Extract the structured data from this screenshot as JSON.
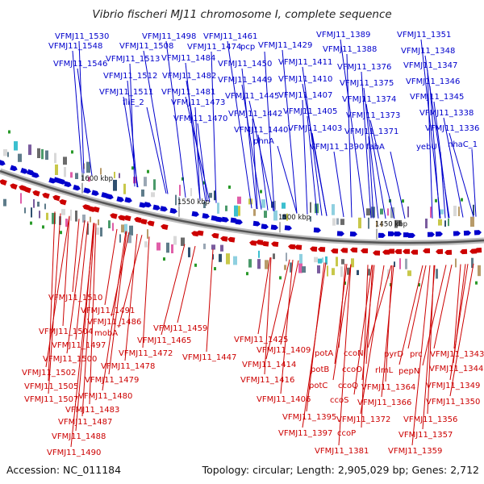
{
  "title": "Vibrio fischeri MJ11 chromosome I, complete sequence",
  "accession": "Accession: NC_011184",
  "summary": "Topology: circular; Length: 2,905,029 bp; Genes: 2,712",
  "colors": {
    "forward_strand": "#0000cc",
    "reverse_strand": "#cc0000",
    "backbone": "#888888",
    "green_mark": "#2a9a2a"
  },
  "kbp_ticks": [
    "1600 kbp",
    "1550 kbp",
    "1500 kbp",
    "1450 kbp"
  ],
  "top_labels": [
    "VFMJ11_1530",
    "VFMJ11_1548",
    "VFMJ11_1546",
    "VFMJ11_1498",
    "VFMJ11_1508",
    "VFMJ11_1513",
    "VFMJ11_1512",
    "VFMJ11_1511",
    "fliE_2",
    "VFMJ11_1461",
    "VFMJ11_1474",
    "pcp",
    "VFMJ11_1484",
    "VFMJ11_1482",
    "VFMJ11_1481",
    "VFMJ11_1473",
    "VFMJ11_1470",
    "VFMJ11_1450",
    "VFMJ11_1449",
    "VFMJ11_1445",
    "VFMJ11_1442",
    "VFMJ11_1440",
    "VFMJ11_1429",
    "VFMJ11_1411",
    "VFMJ11_1410",
    "VFMJ11_1407",
    "VFMJ11_1405",
    "VFMJ11_1403",
    "phnA",
    "VFMJ11_1389",
    "VFMJ11_1388",
    "VFMJ11_1376",
    "VFMJ11_1375",
    "VFMJ11_1374",
    "VFMJ11_1373",
    "VFMJ11_1371",
    "VFMJ11_1390",
    "fabA",
    "VFMJ11_1351",
    "VFMJ11_1348",
    "VFMJ11_1347",
    "VFMJ11_1346",
    "VFMJ11_1345",
    "VFMJ11_1338",
    "VFMJ11_1336",
    "yebU",
    "nhaC_1"
  ],
  "bottom_labels": [
    "VFMJ11_1510",
    "VFMJ11_1491",
    "VFMJ11_1486",
    "mobA",
    "VFMJ11_1504",
    "VFMJ11_1497",
    "VFMJ11_1500",
    "VFMJ11_1502",
    "VFMJ11_1505",
    "VFMJ11_1507",
    "VFMJ11_1459",
    "VFMJ11_1465",
    "VFMJ11_1472",
    "VFMJ11_1478",
    "VFMJ11_1479",
    "VFMJ11_1480",
    "VFMJ11_1483",
    "VFMJ11_1487",
    "VFMJ11_1488",
    "VFMJ11_1490",
    "VFMJ11_1447",
    "VFMJ11_1425",
    "VFMJ11_1409",
    "VFMJ11_1414",
    "VFMJ11_1416",
    "VFMJ11_1406",
    "VFMJ11_1395",
    "VFMJ11_1397",
    "potA",
    "potB",
    "potC",
    "ccoN",
    "ccoO",
    "ccoQ",
    "ccoS",
    "VFMJ11_1372",
    "ccoP",
    "VFMJ11_1381",
    "pyrD",
    "rlmL",
    "VFMJ11_1364",
    "VFMJ11_1366",
    "prc",
    "pepN",
    "VFMJ11_1343",
    "VFMJ11_1344",
    "VFMJ11_1349",
    "VFMJ11_1350",
    "VFMJ11_1356",
    "VFMJ11_1357",
    "VFMJ11_1359"
  ]
}
